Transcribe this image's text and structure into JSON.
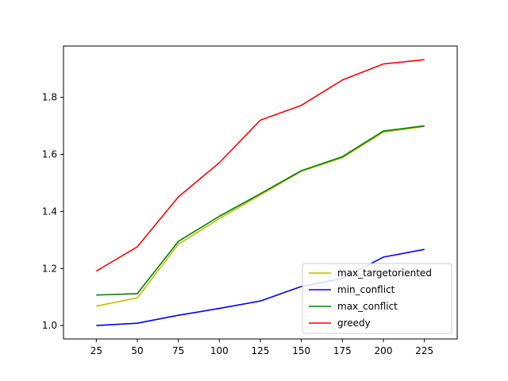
{
  "chart_data": {
    "type": "line",
    "title": "",
    "xlabel": "",
    "ylabel": "",
    "x": [
      25,
      50,
      75,
      100,
      125,
      150,
      175,
      200,
      225
    ],
    "xlim": [
      5,
      245
    ],
    "ylim": [
      0.953,
      1.98
    ],
    "xticks": [
      "25",
      "50",
      "75",
      "100",
      "125",
      "150",
      "175",
      "200",
      "225"
    ],
    "yticks": [
      "1.0",
      "1.2",
      "1.4",
      "1.6",
      "1.8"
    ],
    "grid": false,
    "legend_position": "bottom-right",
    "series": [
      {
        "name": "max_targetoriented",
        "color": "#bfbf00",
        "values": [
          1.068,
          1.097,
          1.285,
          1.375,
          1.458,
          1.541,
          1.588,
          1.678,
          1.698
        ]
      },
      {
        "name": "min_conflict",
        "color": "#0000ff",
        "values": [
          1.0,
          1.008,
          1.036,
          1.06,
          1.086,
          1.137,
          1.165,
          1.24,
          1.267
        ]
      },
      {
        "name": "max_conflict",
        "color": "#008000",
        "values": [
          1.107,
          1.112,
          1.295,
          1.383,
          1.462,
          1.543,
          1.592,
          1.682,
          1.7
        ]
      },
      {
        "name": "greedy",
        "color": "#ff0000",
        "values": [
          1.191,
          1.276,
          1.451,
          1.571,
          1.72,
          1.772,
          1.861,
          1.917,
          1.932
        ]
      }
    ]
  }
}
